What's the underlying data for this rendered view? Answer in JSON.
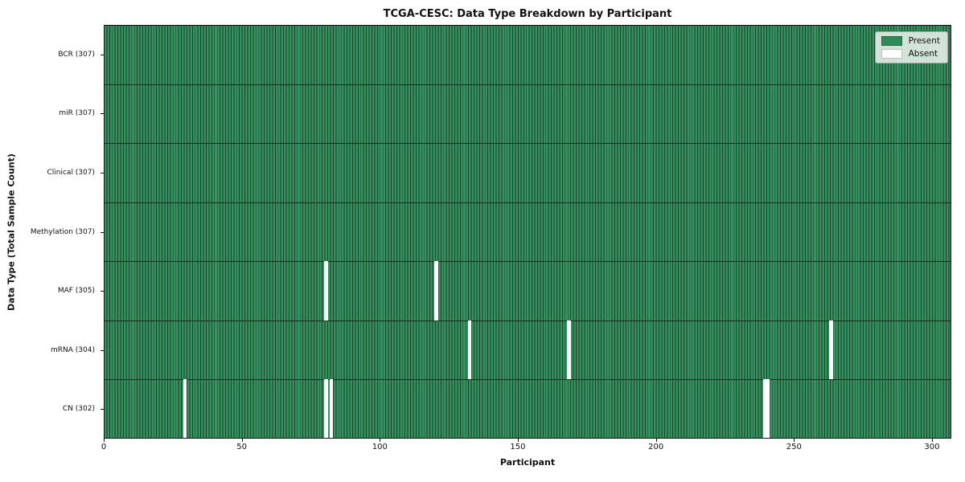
{
  "chart_data": {
    "type": "heatmap",
    "title": "TCGA-CESC: Data Type Breakdown by Participant",
    "xlabel": "Participant",
    "ylabel": "Data Type (Total Sample Count)",
    "n_participants": 307,
    "x_ticks": [
      0,
      50,
      100,
      150,
      200,
      250,
      300
    ],
    "xlim": [
      0,
      307
    ],
    "grid": false,
    "legend_position": "upper right",
    "legend": [
      {
        "label": "Present",
        "color": "#2e8b57"
      },
      {
        "label": "Absent",
        "color": "#ffffff"
      }
    ],
    "rows": [
      {
        "label": "BCR (307)",
        "data_type": "BCR",
        "total": 307,
        "absent_participants": []
      },
      {
        "label": "miR (307)",
        "data_type": "miR",
        "total": 307,
        "absent_participants": []
      },
      {
        "label": "Clinical (307)",
        "data_type": "Clinical",
        "total": 307,
        "absent_participants": []
      },
      {
        "label": "Methylation (307)",
        "data_type": "Methylation",
        "total": 307,
        "absent_participants": []
      },
      {
        "label": "MAF (305)",
        "data_type": "MAF",
        "total": 305,
        "absent_participants": [
          80,
          120
        ]
      },
      {
        "label": "mRNA (304)",
        "data_type": "mRNA",
        "total": 304,
        "absent_participants": [
          132,
          168,
          263
        ]
      },
      {
        "label": "CN (302)",
        "data_type": "CN",
        "total": 302,
        "absent_participants": [
          29,
          80,
          82,
          239,
          240
        ]
      }
    ],
    "colors": {
      "present": "#35915e",
      "absent": "#ffffff",
      "cell_edge": "#1d3f2b",
      "row_line": "#16301f",
      "frame": "#141414"
    }
  }
}
